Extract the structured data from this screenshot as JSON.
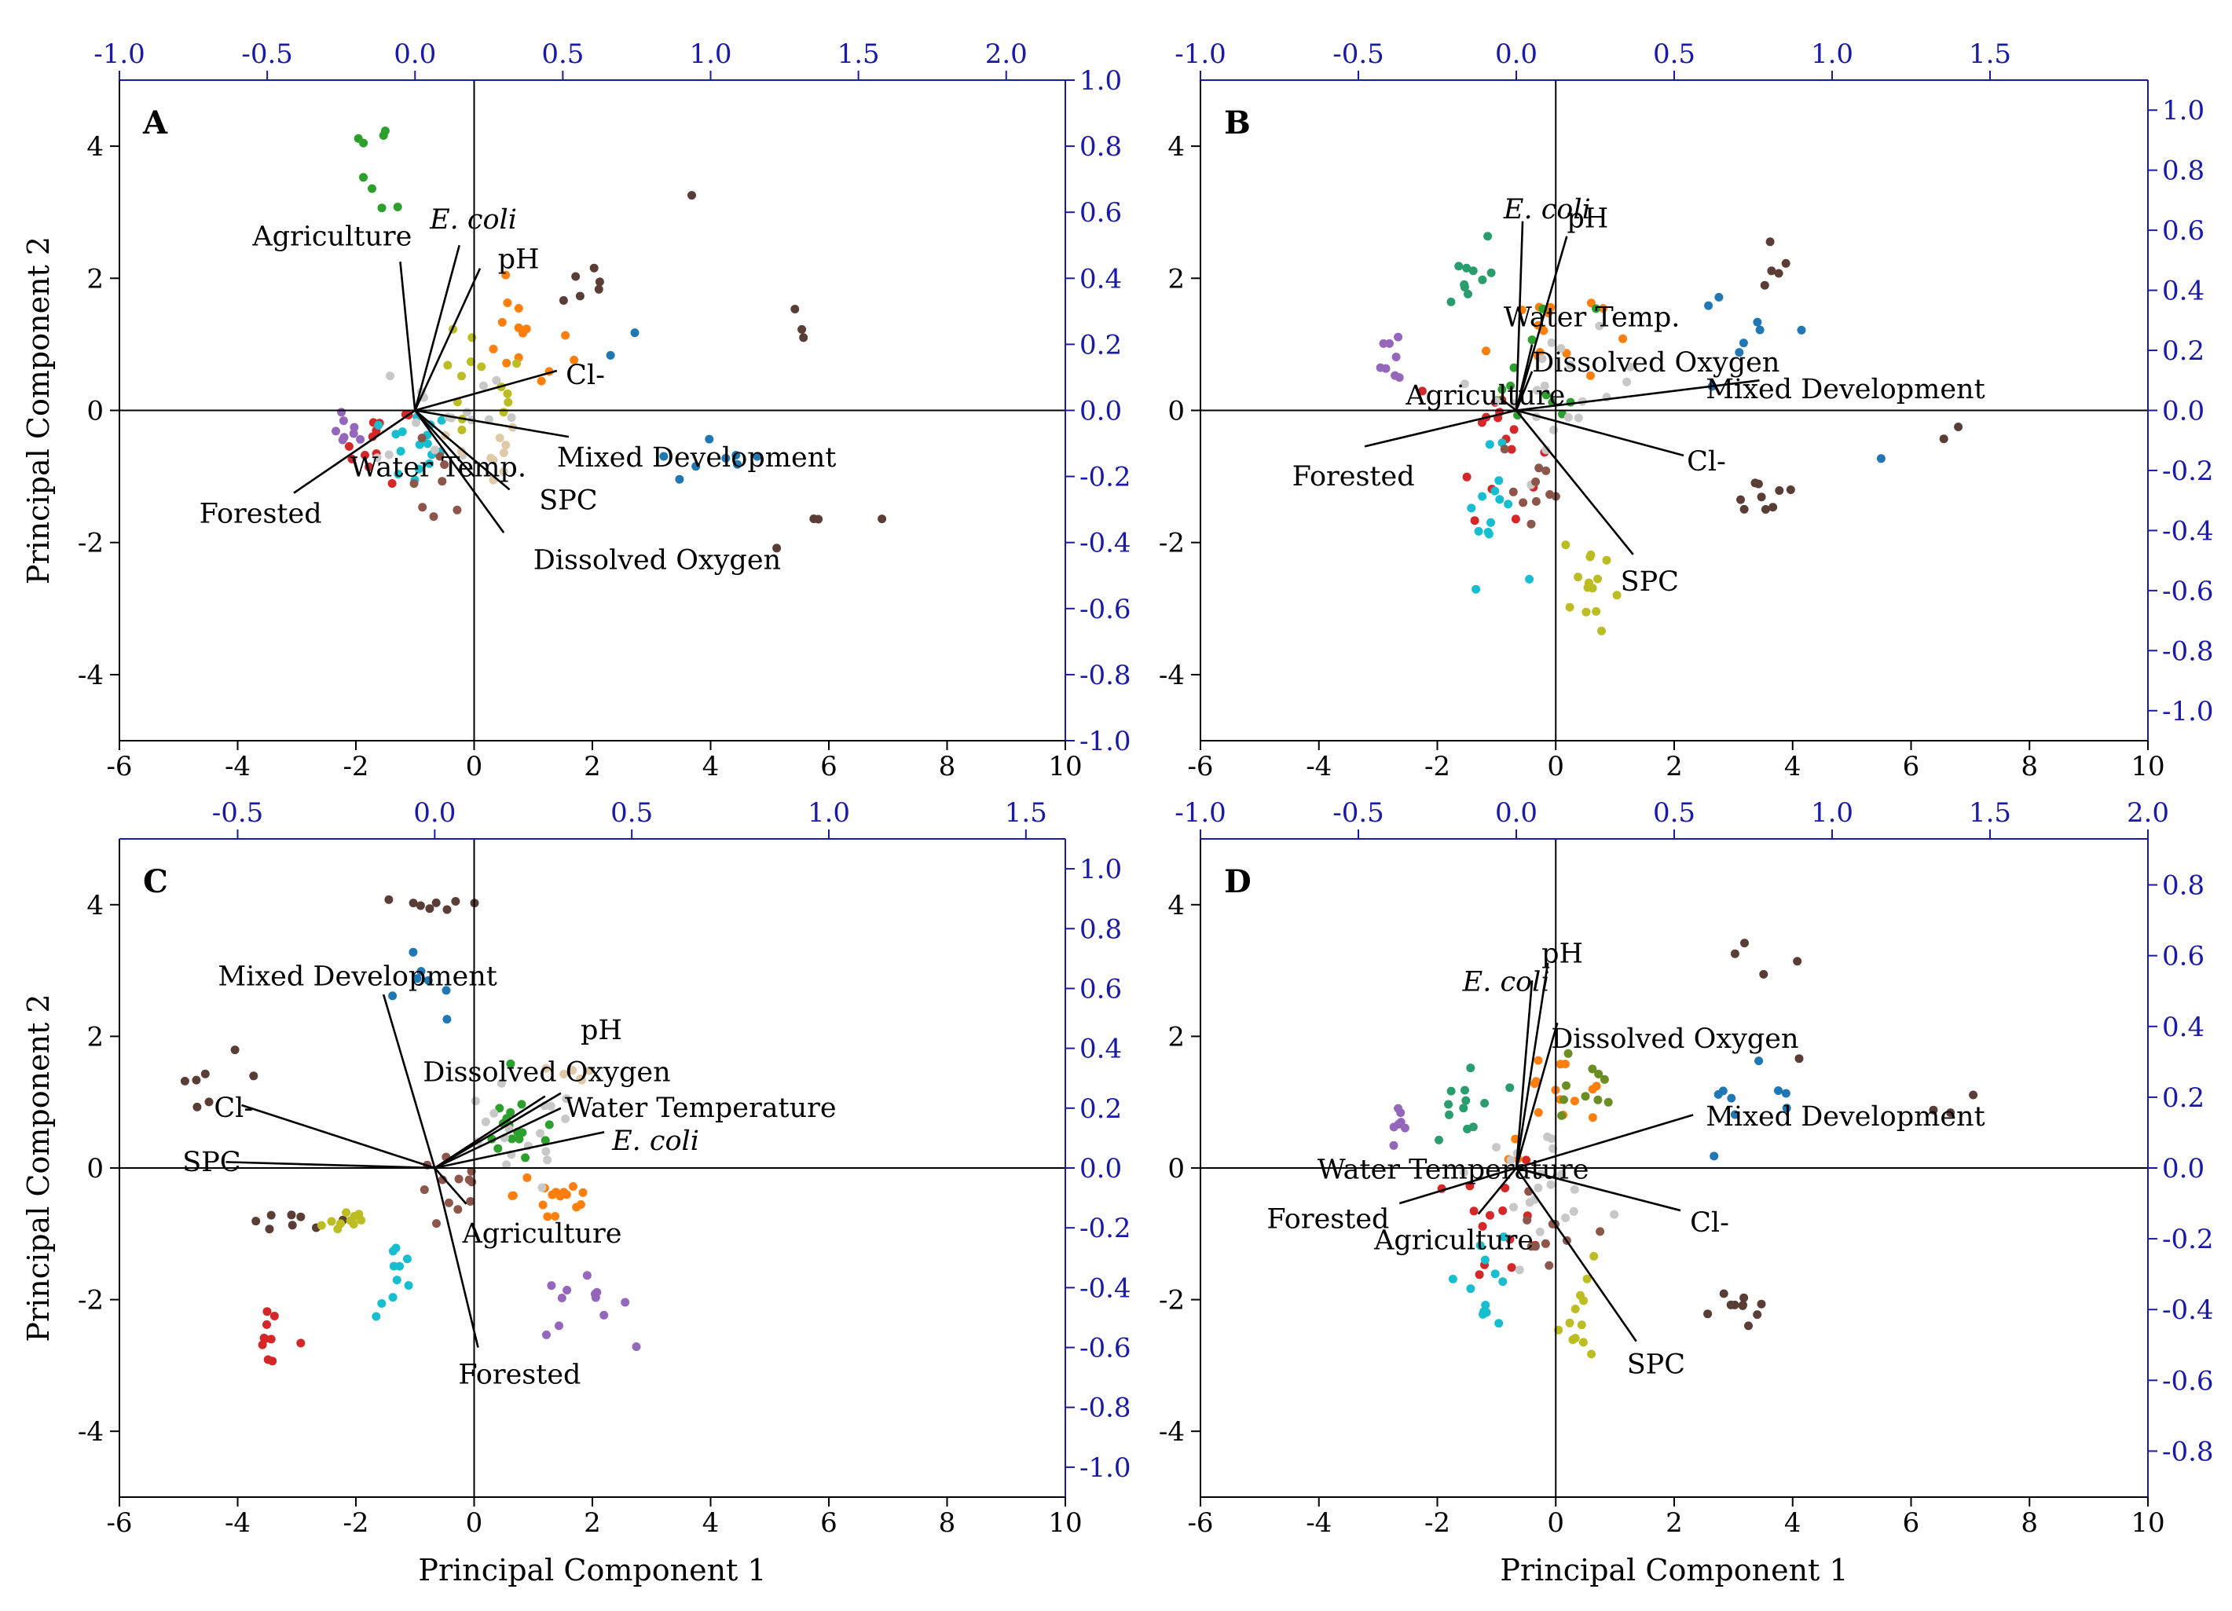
{
  "figure": {
    "y_axis_title": "Principal Component 2",
    "x_axis_title": "Principal Component 1"
  },
  "colors": {
    "axis": "#000000",
    "secondary_axis": "#1a1aa8",
    "vector": "#000000",
    "palette": [
      "#5a3e36",
      "#1f77b4",
      "#2ca02c",
      "#d62728",
      "#9467bd",
      "#8c564b",
      "#17becf",
      "#bcbd22",
      "#ff7f0e",
      "#e0c9a6",
      "#c8c8c8",
      "#2a9d6f",
      "#6b8e23",
      "#b8860b"
    ]
  },
  "chart_data": [
    {
      "type": "scatter",
      "panel": "A",
      "xlabel": "",
      "ylabel": "Principal Component 2",
      "xlim": [
        -6,
        10
      ],
      "ylim": [
        -5,
        5
      ],
      "x_ticks": [
        "-6",
        "-4",
        "-2",
        "0",
        "2",
        "4",
        "6",
        "8",
        "10"
      ],
      "y_ticks": [
        "-4",
        "-2",
        "0",
        "2",
        "4"
      ],
      "top_range": [
        -1.0,
        2.2
      ],
      "top_ticks": [
        "-1.0",
        "-0.5",
        "0.0",
        "0.5",
        "1.0",
        "1.5",
        "2.0"
      ],
      "right_range": [
        -1.0,
        1.0
      ],
      "right_ticks": [
        "-1.0",
        "-0.8",
        "-0.6",
        "-0.4",
        "-0.2",
        "0.0",
        "0.2",
        "0.4",
        "0.6",
        "0.8",
        "1.0"
      ],
      "loadings": [
        {
          "label": "Agriculture",
          "italic": false,
          "x": -0.05,
          "y": 0.45,
          "lx": -0.55,
          "ly": 0.5
        },
        {
          "label": "E. coli",
          "italic": true,
          "x": 0.15,
          "y": 0.5,
          "lx": 0.05,
          "ly": 0.55
        },
        {
          "label": "pH",
          "italic": false,
          "x": 0.22,
          "y": 0.43,
          "lx": 0.28,
          "ly": 0.43
        },
        {
          "label": "Cl-",
          "italic": false,
          "x": 0.48,
          "y": 0.12,
          "lx": 0.51,
          "ly": 0.08
        },
        {
          "label": "Mixed Development",
          "italic": false,
          "x": 0.52,
          "y": -0.08,
          "lx": 0.48,
          "ly": -0.17
        },
        {
          "label": "SPC",
          "italic": false,
          "x": 0.32,
          "y": -0.24,
          "lx": 0.42,
          "ly": -0.3
        },
        {
          "label": "Dissolved Oxygen",
          "italic": false,
          "x": 0.3,
          "y": -0.37,
          "lx": 0.4,
          "ly": -0.48
        },
        {
          "label": "Water Temp.",
          "italic": false,
          "x": 0.2,
          "y": -0.2,
          "lx": -0.22,
          "ly": -0.2
        },
        {
          "label": "Forested",
          "italic": false,
          "x": -0.41,
          "y": -0.25,
          "lx": -0.73,
          "ly": -0.34
        }
      ],
      "clusters": [
        {
          "c": 0,
          "x": 3.7,
          "y": 3.2,
          "sx": 0.1,
          "sy": 0.1,
          "n": 1
        },
        {
          "c": 0,
          "x": 5.5,
          "y": 1.2,
          "sx": 0.3,
          "sy": 0.4,
          "n": 3
        },
        {
          "c": 0,
          "x": 6.6,
          "y": -1.8,
          "sx": 1.2,
          "sy": 0.9,
          "n": 4
        },
        {
          "c": 0,
          "x": 1.8,
          "y": 2.0,
          "sx": 0.6,
          "sy": 0.4,
          "n": 6
        },
        {
          "c": 2,
          "x": -1.8,
          "y": 4.0,
          "sx": 0.4,
          "sy": 0.3,
          "n": 5
        },
        {
          "c": 2,
          "x": -1.5,
          "y": 3.4,
          "sx": 0.3,
          "sy": 0.3,
          "n": 3
        },
        {
          "c": 1,
          "x": 4.2,
          "y": -0.8,
          "sx": 1.0,
          "sy": 0.3,
          "n": 8
        },
        {
          "c": 1,
          "x": 2.6,
          "y": 0.9,
          "sx": 0.3,
          "sy": 0.3,
          "n": 2
        },
        {
          "c": 4,
          "x": -2.1,
          "y": -0.3,
          "sx": 0.2,
          "sy": 0.3,
          "n": 8
        },
        {
          "c": 3,
          "x": -1.6,
          "y": -0.5,
          "sx": 0.5,
          "sy": 0.5,
          "n": 12
        },
        {
          "c": 6,
          "x": -1.0,
          "y": -0.6,
          "sx": 0.5,
          "sy": 0.5,
          "n": 16
        },
        {
          "c": 8,
          "x": 0.8,
          "y": 1.0,
          "sx": 0.7,
          "sy": 0.7,
          "n": 14
        },
        {
          "c": 7,
          "x": 0.0,
          "y": 0.3,
          "sx": 0.8,
          "sy": 0.8,
          "n": 14
        },
        {
          "c": 5,
          "x": -0.6,
          "y": -1.2,
          "sx": 0.4,
          "sy": 0.6,
          "n": 8
        },
        {
          "c": 10,
          "x": -0.5,
          "y": 0.0,
          "sx": 1.0,
          "sy": 0.8,
          "n": 16
        },
        {
          "c": 9,
          "x": 0.2,
          "y": -0.7,
          "sx": 0.5,
          "sy": 0.5,
          "n": 10
        }
      ]
    },
    {
      "type": "scatter",
      "panel": "B",
      "xlabel": "",
      "ylabel": "",
      "xlim": [
        -6,
        10
      ],
      "ylim": [
        -5,
        5
      ],
      "x_ticks": [
        "-6",
        "-4",
        "-2",
        "0",
        "2",
        "4",
        "6",
        "8",
        "10"
      ],
      "y_ticks": [
        "-4",
        "-2",
        "0",
        "2",
        "4"
      ],
      "top_range": [
        -1.0,
        2.0
      ],
      "top_ticks": [
        "-1.0",
        "-0.5",
        "0.0",
        "0.5",
        "1.0",
        "1.5"
      ],
      "right_range": [
        -1.1,
        1.1
      ],
      "right_ticks": [
        "-1.0",
        "-0.8",
        "-0.6",
        "-0.4",
        "-0.2",
        "0.0",
        "0.2",
        "0.4",
        "0.6",
        "0.8",
        "1.0"
      ],
      "loadings": [
        {
          "label": "E. coli",
          "italic": true,
          "x": 0.02,
          "y": 0.63,
          "lx": -0.04,
          "ly": 0.64
        },
        {
          "label": "pH",
          "italic": false,
          "x": 0.16,
          "y": 0.58,
          "lx": 0.16,
          "ly": 0.61
        },
        {
          "label": "Water Temp.",
          "italic": false,
          "x": 0.05,
          "y": 0.22,
          "lx": -0.04,
          "ly": 0.28
        },
        {
          "label": "Dissolved Oxygen",
          "italic": false,
          "x": 0.05,
          "y": 0.13,
          "lx": 0.05,
          "ly": 0.13
        },
        {
          "label": "Agriculture",
          "italic": false,
          "x": -0.05,
          "y": 0.04,
          "lx": -0.35,
          "ly": 0.02
        },
        {
          "label": "Mixed Development",
          "italic": false,
          "x": 0.77,
          "y": 0.1,
          "lx": 0.6,
          "ly": 0.04
        },
        {
          "label": "Cl-",
          "italic": false,
          "x": 0.53,
          "y": -0.15,
          "lx": 0.54,
          "ly": -0.2
        },
        {
          "label": "SPC",
          "italic": false,
          "x": 0.37,
          "y": -0.48,
          "lx": 0.33,
          "ly": -0.6
        },
        {
          "label": "Forested",
          "italic": false,
          "x": -0.48,
          "y": -0.12,
          "lx": -0.71,
          "ly": -0.25
        }
      ],
      "clusters": [
        {
          "c": 0,
          "x": 3.5,
          "y": 2.4,
          "sx": 0.6,
          "sy": 0.5,
          "n": 5
        },
        {
          "c": 0,
          "x": 3.5,
          "y": -1.3,
          "sx": 0.6,
          "sy": 0.3,
          "n": 9
        },
        {
          "c": 0,
          "x": 6.6,
          "y": -0.3,
          "sx": 0.3,
          "sy": 0.2,
          "n": 2
        },
        {
          "c": 1,
          "x": 3.3,
          "y": 1.1,
          "sx": 1.2,
          "sy": 1.0,
          "n": 8
        },
        {
          "c": 1,
          "x": 5.5,
          "y": -0.8,
          "sx": 0.2,
          "sy": 0.2,
          "n": 1
        },
        {
          "c": 4,
          "x": -2.7,
          "y": 0.9,
          "sx": 0.2,
          "sy": 0.5,
          "n": 8
        },
        {
          "c": 11,
          "x": -1.5,
          "y": 2.1,
          "sx": 0.4,
          "sy": 0.6,
          "n": 10
        },
        {
          "c": 3,
          "x": -1.0,
          "y": -0.4,
          "sx": 0.6,
          "sy": 1.0,
          "n": 16
        },
        {
          "c": 6,
          "x": -1.1,
          "y": -1.6,
          "sx": 0.4,
          "sy": 0.8,
          "n": 14
        },
        {
          "c": 7,
          "x": 0.6,
          "y": -2.6,
          "sx": 0.4,
          "sy": 0.8,
          "n": 14
        },
        {
          "c": 8,
          "x": -0.2,
          "y": 1.2,
          "sx": 0.8,
          "sy": 0.7,
          "n": 14
        },
        {
          "c": 2,
          "x": -0.3,
          "y": 0.6,
          "sx": 0.8,
          "sy": 0.9,
          "n": 12
        },
        {
          "c": 10,
          "x": 0.2,
          "y": 0.3,
          "sx": 1.0,
          "sy": 0.7,
          "n": 20
        },
        {
          "c": 5,
          "x": -0.4,
          "y": -1.2,
          "sx": 0.5,
          "sy": 0.7,
          "n": 10
        }
      ]
    },
    {
      "type": "scatter",
      "panel": "C",
      "xlabel": "Principal Component 1",
      "ylabel": "Principal Component 2",
      "xlim": [
        -6,
        10
      ],
      "ylim": [
        -5,
        5
      ],
      "x_ticks": [
        "-6",
        "-4",
        "-2",
        "0",
        "2",
        "4",
        "6",
        "8",
        "10"
      ],
      "y_ticks": [
        "-4",
        "-2",
        "0",
        "2",
        "4"
      ],
      "top_range": [
        -0.8,
        1.6
      ],
      "top_ticks": [
        "-0.5",
        "0.0",
        "0.5",
        "1.0",
        "1.5"
      ],
      "right_range": [
        -1.1,
        1.1
      ],
      "right_ticks": [
        "-1.0",
        "-0.8",
        "-0.6",
        "-0.4",
        "-0.2",
        "0.0",
        "0.2",
        "0.4",
        "0.6",
        "0.8",
        "1.0"
      ],
      "loadings": [
        {
          "label": "Mixed Development",
          "italic": false,
          "x": -0.13,
          "y": 0.58,
          "lx": -0.55,
          "ly": 0.61
        },
        {
          "label": "pH",
          "italic": false,
          "x": 0.28,
          "y": 0.24,
          "lx": 0.37,
          "ly": 0.43
        },
        {
          "label": "Dissolved Oxygen",
          "italic": false,
          "x": 0.32,
          "y": 0.25,
          "lx": -0.03,
          "ly": 0.29
        },
        {
          "label": "Water Temperature",
          "italic": false,
          "x": 0.32,
          "y": 0.2,
          "lx": 0.33,
          "ly": 0.17
        },
        {
          "label": "E. coli",
          "italic": true,
          "x": 0.43,
          "y": 0.12,
          "lx": 0.45,
          "ly": 0.06
        },
        {
          "label": "Cl-",
          "italic": false,
          "x": -0.49,
          "y": 0.21,
          "lx": -0.56,
          "ly": 0.17
        },
        {
          "label": "SPC",
          "italic": false,
          "x": -0.53,
          "y": 0.02,
          "lx": -0.64,
          "ly": -0.01
        },
        {
          "label": "Agriculture",
          "italic": false,
          "x": 0.08,
          "y": -0.12,
          "lx": 0.07,
          "ly": -0.25
        },
        {
          "label": "Forested",
          "italic": false,
          "x": 0.11,
          "y": -0.6,
          "lx": 0.06,
          "ly": -0.72
        }
      ],
      "clusters": [
        {
          "c": 0,
          "x": -0.5,
          "y": 4.0,
          "sx": 0.9,
          "sy": 0.1,
          "n": 8
        },
        {
          "c": 0,
          "x": -4.5,
          "y": 1.4,
          "sx": 0.8,
          "sy": 0.3,
          "n": 7
        },
        {
          "c": 0,
          "x": -3.0,
          "y": -0.8,
          "sx": 0.8,
          "sy": 0.1,
          "n": 8
        },
        {
          "c": 1,
          "x": -0.8,
          "y": 2.7,
          "sx": 0.6,
          "sy": 0.5,
          "n": 7
        },
        {
          "c": 3,
          "x": -3.6,
          "y": -2.6,
          "sx": 0.6,
          "sy": 0.3,
          "n": 10
        },
        {
          "c": 4,
          "x": 1.8,
          "y": -2.1,
          "sx": 0.7,
          "sy": 0.4,
          "n": 12
        },
        {
          "c": 6,
          "x": -1.3,
          "y": -1.7,
          "sx": 0.3,
          "sy": 0.5,
          "n": 10
        },
        {
          "c": 7,
          "x": -2.2,
          "y": -0.8,
          "sx": 0.4,
          "sy": 0.2,
          "n": 10
        },
        {
          "c": 8,
          "x": 1.4,
          "y": -0.4,
          "sx": 0.6,
          "sy": 0.5,
          "n": 16
        },
        {
          "c": 2,
          "x": 0.8,
          "y": 0.6,
          "sx": 0.7,
          "sy": 0.5,
          "n": 16
        },
        {
          "c": 10,
          "x": 0.6,
          "y": 0.4,
          "sx": 1.0,
          "sy": 0.7,
          "n": 18
        },
        {
          "c": 5,
          "x": -0.3,
          "y": -0.4,
          "sx": 0.6,
          "sy": 0.5,
          "n": 12
        },
        {
          "c": 9,
          "x": 1.5,
          "y": 1.4,
          "sx": 0.6,
          "sy": 0.3,
          "n": 6
        }
      ]
    },
    {
      "type": "scatter",
      "panel": "D",
      "xlabel": "Principal Component 1",
      "ylabel": "",
      "xlim": [
        -6,
        10
      ],
      "ylim": [
        -5,
        5
      ],
      "x_ticks": [
        "-6",
        "-4",
        "-2",
        "0",
        "2",
        "4",
        "6",
        "8",
        "10"
      ],
      "y_ticks": [
        "-4",
        "-2",
        "0",
        "2",
        "4"
      ],
      "top_range": [
        -1.0,
        2.0
      ],
      "top_ticks": [
        "-1.0",
        "-0.5",
        "0.0",
        "0.5",
        "1.0",
        "1.5",
        "2.0"
      ],
      "right_range": [
        -0.93,
        0.93
      ],
      "right_ticks": [
        "-0.8",
        "-0.6",
        "-0.4",
        "-0.2",
        "0.0",
        "0.2",
        "0.4",
        "0.6",
        "0.8"
      ],
      "loadings": [
        {
          "label": "pH",
          "italic": false,
          "x": 0.1,
          "y": 0.58,
          "lx": 0.08,
          "ly": 0.58
        },
        {
          "label": "E. coli",
          "italic": true,
          "x": 0.05,
          "y": 0.53,
          "lx": -0.17,
          "ly": 0.5
        },
        {
          "label": "Dissolved Oxygen",
          "italic": false,
          "x": 0.13,
          "y": 0.41,
          "lx": 0.11,
          "ly": 0.34
        },
        {
          "label": "Mixed Development",
          "italic": false,
          "x": 0.56,
          "y": 0.15,
          "lx": 0.6,
          "ly": 0.12
        },
        {
          "label": "Cl-",
          "italic": false,
          "x": 0.52,
          "y": -0.12,
          "lx": 0.55,
          "ly": -0.18
        },
        {
          "label": "SPC",
          "italic": false,
          "x": 0.38,
          "y": -0.49,
          "lx": 0.35,
          "ly": -0.58
        },
        {
          "label": "Water Temperature",
          "italic": false,
          "x": 0.08,
          "y": -0.02,
          "lx": -0.63,
          "ly": -0.03
        },
        {
          "label": "Forested",
          "italic": false,
          "x": -0.37,
          "y": -0.1,
          "lx": -0.79,
          "ly": -0.17
        },
        {
          "label": "Agriculture",
          "italic": false,
          "x": -0.12,
          "y": -0.13,
          "lx": -0.45,
          "ly": -0.23
        }
      ],
      "clusters": [
        {
          "c": 0,
          "x": 3.4,
          "y": 2.4,
          "sx": 0.8,
          "sy": 0.8,
          "n": 5
        },
        {
          "c": 0,
          "x": 3.2,
          "y": -2.0,
          "sx": 0.4,
          "sy": 0.4,
          "n": 10
        },
        {
          "c": 0,
          "x": 6.6,
          "y": 0.6,
          "sx": 0.5,
          "sy": 0.6,
          "n": 3
        },
        {
          "c": 1,
          "x": 3.2,
          "y": 0.6,
          "sx": 1.2,
          "sy": 0.7,
          "n": 9
        },
        {
          "c": 4,
          "x": -2.6,
          "y": 0.8,
          "sx": 0.1,
          "sy": 0.3,
          "n": 7
        },
        {
          "c": 11,
          "x": -1.5,
          "y": 0.9,
          "sx": 0.5,
          "sy": 0.8,
          "n": 12
        },
        {
          "c": 3,
          "x": -0.9,
          "y": -0.8,
          "sx": 0.6,
          "sy": 0.8,
          "n": 14
        },
        {
          "c": 6,
          "x": -1.2,
          "y": -1.6,
          "sx": 0.4,
          "sy": 0.7,
          "n": 12
        },
        {
          "c": 7,
          "x": 0.5,
          "y": -2.2,
          "sx": 0.4,
          "sy": 0.6,
          "n": 12
        },
        {
          "c": 8,
          "x": 0.0,
          "y": 1.0,
          "sx": 0.8,
          "sy": 0.7,
          "n": 16
        },
        {
          "c": 10,
          "x": -0.3,
          "y": -0.1,
          "sx": 0.9,
          "sy": 0.6,
          "n": 20
        },
        {
          "c": 5,
          "x": -0.2,
          "y": -1.3,
          "sx": 0.5,
          "sy": 0.7,
          "n": 10
        },
        {
          "c": 12,
          "x": 0.4,
          "y": 1.2,
          "sx": 0.6,
          "sy": 0.6,
          "n": 10
        }
      ]
    }
  ]
}
